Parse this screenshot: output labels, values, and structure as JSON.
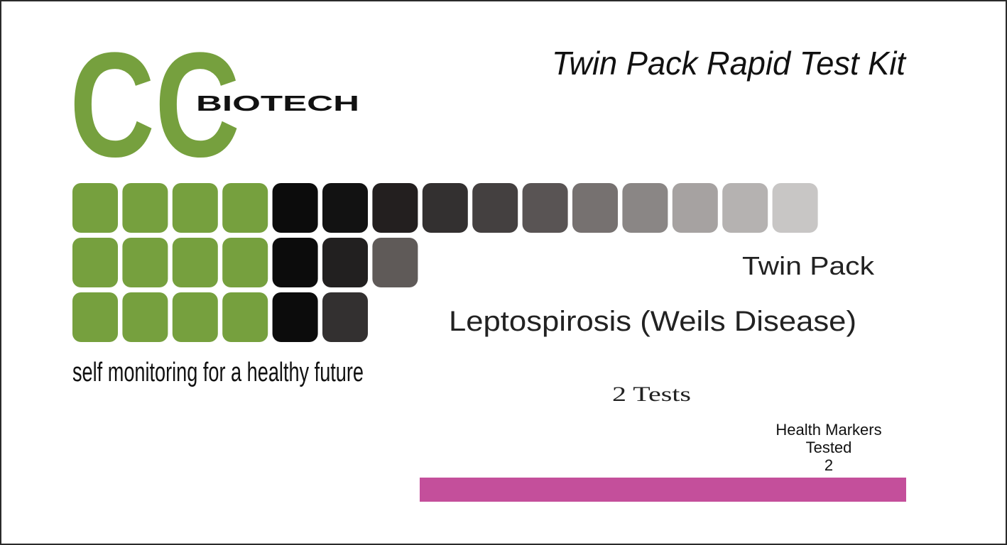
{
  "logo": {
    "mark": "CC",
    "name": "BIOTECH",
    "tagline": "self monitoring for a healthy future"
  },
  "title": "Twin Pack Rapid Test Kit",
  "pack": "Twin Pack",
  "product": "Leptospirosis (Weils Disease)",
  "tests": "2 Tests",
  "markers": {
    "lines": [
      "Health Markers",
      "Tested",
      "2"
    ]
  }
}
